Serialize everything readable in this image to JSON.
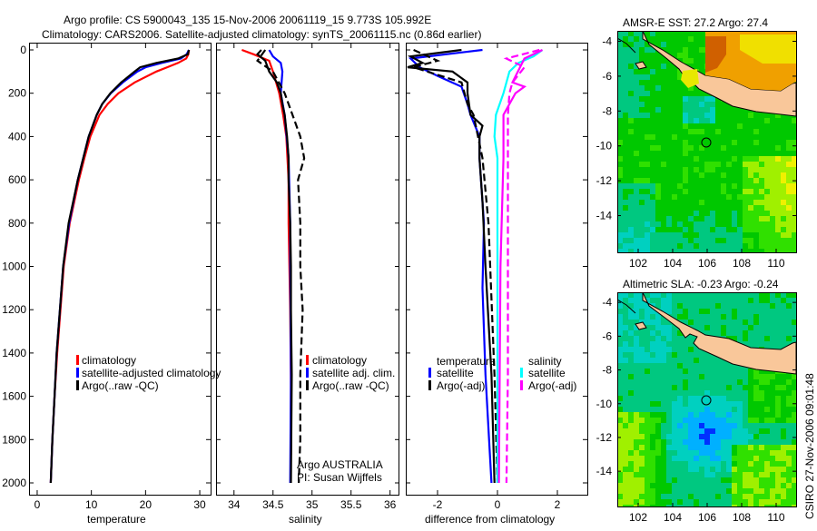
{
  "title": {
    "line1": "Argo profile: CS 5900043_135 15-Nov-2006 20061119_15 9.773S 105.992E",
    "line2": "Climatology: CARS2006. Satellite-adjusted climatology: synTS_20061115.nc (0.86d earlier)"
  },
  "side_stamp": "CSIRO 27-Nov-2006 09:01:48",
  "colors": {
    "climatology": "#ff0000",
    "satellite": "#0000ff",
    "argo": "#000000",
    "sal_satellite": "#00ffff",
    "sal_argo": "#ff00ff",
    "land": "#f9c79a"
  },
  "chart_data": [
    {
      "type": "line",
      "xlabel": "temperature",
      "ylabel": "",
      "xlim": [
        -1.5,
        32
      ],
      "ylim": [
        2000,
        0
      ],
      "xticks": [
        "0",
        "10",
        "20",
        "30"
      ],
      "xtick_values": [
        0,
        10,
        20,
        30
      ],
      "yticks": [
        "0",
        "200",
        "400",
        "600",
        "800",
        "1000",
        "1200",
        "1400",
        "1600",
        "1800",
        "2000"
      ],
      "ytick_values": [
        0,
        200,
        400,
        600,
        800,
        1000,
        1200,
        1400,
        1600,
        1800,
        2000
      ],
      "legend": [
        "climatology",
        "satellite-adjusted climatology",
        "Argo(..raw -QC)"
      ],
      "series": [
        {
          "name": "climatology",
          "color": "#ff0000",
          "dash": false,
          "depth": [
            0,
            20,
            40,
            60,
            80,
            100,
            150,
            200,
            250,
            300,
            400,
            500,
            600,
            800,
            1000,
            1200,
            1400,
            1600,
            1800,
            2000
          ],
          "values": [
            28,
            27.9,
            27.5,
            26,
            24,
            22,
            18,
            15,
            13,
            11.5,
            9.8,
            8.7,
            7.7,
            6,
            4.9,
            4.3,
            3.7,
            3.2,
            2.8,
            2.5
          ]
        },
        {
          "name": "satellite-adjusted climatology",
          "color": "#0000ff",
          "dash": false,
          "depth": [
            0,
            20,
            40,
            60,
            80,
            100,
            150,
            200,
            250,
            300,
            400,
            500,
            600,
            800,
            1000,
            1200,
            1400,
            1600,
            1800,
            2000
          ],
          "values": [
            28,
            27.6,
            26.5,
            23,
            20,
            18.5,
            15.8,
            13.6,
            12,
            11,
            9.5,
            8.5,
            7.5,
            5.9,
            4.8,
            4.2,
            3.6,
            3.2,
            2.8,
            2.5
          ]
        },
        {
          "name": "Argo(..raw -QC)",
          "color": "#000000",
          "dash": false,
          "depth": [
            0,
            20,
            40,
            60,
            80,
            100,
            150,
            200,
            250,
            300,
            400,
            500,
            600,
            800,
            1000,
            1200,
            1400,
            1600,
            1800,
            2000
          ],
          "values": [
            28,
            27.8,
            26,
            22,
            19,
            18,
            15.5,
            13.5,
            12,
            11,
            9.5,
            8.5,
            7.5,
            5.8,
            4.8,
            4.2,
            3.6,
            3.2,
            2.8,
            2.5
          ]
        }
      ]
    },
    {
      "type": "line",
      "xlabel": "salinity",
      "xlim": [
        33.77,
        36.12
      ],
      "ylim": [
        2000,
        0
      ],
      "xticks": [
        "34",
        "34.5",
        "35",
        "35.5",
        "36"
      ],
      "xtick_values": [
        34,
        34.5,
        35,
        35.5,
        36
      ],
      "legend": [
        "climatology",
        "satellite adj. clim.",
        "Argo(..raw -QC)"
      ],
      "annotation": [
        "Argo AUSTRALIA",
        "PI: Susan Wijffels"
      ],
      "series": [
        {
          "name": "climatology",
          "color": "#ff0000",
          "dash": false,
          "depth": [
            0,
            20,
            50,
            100,
            200,
            300,
            400,
            600,
            800,
            1000,
            1200,
            1550,
            1870
          ],
          "values": [
            34.1,
            34.25,
            34.45,
            34.5,
            34.58,
            34.63,
            34.67,
            34.7,
            34.7,
            34.71,
            34.72,
            34.73,
            34.73
          ]
        },
        {
          "name": "satellite adj. clim.",
          "color": "#0000ff",
          "dash": false,
          "depth": [
            0,
            30,
            60,
            100,
            200,
            300,
            500,
            800,
            1000,
            1500,
            2000
          ],
          "values": [
            34.45,
            34.5,
            34.6,
            34.62,
            34.6,
            34.65,
            34.7,
            34.72,
            34.72,
            34.73,
            34.72
          ]
        },
        {
          "name": "Argo(..raw -QC)",
          "color": "#000000",
          "dash": false,
          "depth": [
            0,
            20,
            50,
            100,
            150,
            200,
            250,
            300,
            400,
            500,
            600,
            800,
            1000,
            1200,
            1500,
            2000
          ],
          "values": [
            34.35,
            34.3,
            34.4,
            34.45,
            34.55,
            34.6,
            34.62,
            34.65,
            34.68,
            34.7,
            34.7,
            34.72,
            34.73,
            34.73,
            34.74,
            34.73
          ]
        },
        {
          "name": "Argo raw",
          "color": "#000000",
          "dash": true,
          "depth": [
            0,
            50,
            100,
            200,
            300,
            400,
            500,
            600,
            800,
            1000,
            1200,
            1500,
            1800,
            2000
          ],
          "values": [
            34.4,
            34.3,
            34.5,
            34.65,
            34.75,
            34.85,
            34.9,
            34.82,
            34.85,
            34.85,
            34.88,
            34.85,
            34.85,
            34.83
          ]
        }
      ]
    },
    {
      "type": "line",
      "xlabel": "difference from climatology",
      "xlim": [
        -3.06,
        3.0
      ],
      "ylim": [
        2000,
        0
      ],
      "xticks": [
        "-2",
        "0",
        "2"
      ],
      "xtick_values": [
        -2,
        0,
        2
      ],
      "legend_temperature": {
        "heading": "temperature",
        "items": [
          "satellite",
          "Argo(-adj)"
        ]
      },
      "legend_salinity": {
        "heading": "salinity",
        "items": [
          "satellite",
          "Argo(-adj)"
        ]
      },
      "series": [
        {
          "name": "temperature satellite",
          "color": "#0000ff",
          "dash": false,
          "depth": [
            0,
            40,
            80,
            120,
            170,
            250,
            300,
            400,
            500,
            800,
            1100,
            1500,
            2000
          ],
          "values": [
            -0.5,
            -2.9,
            -2.6,
            -2.0,
            -1.2,
            -1.0,
            -0.9,
            -0.6,
            -0.6,
            -0.45,
            -0.5,
            -0.4,
            -0.2
          ]
        },
        {
          "name": "temperature Argo(-adj)",
          "color": "#000000",
          "dash": false,
          "depth": [
            0,
            30,
            60,
            80,
            100,
            150,
            200,
            300,
            350,
            400,
            500,
            700,
            1000,
            1500,
            2000
          ],
          "values": [
            -1.2,
            -2.9,
            -2.5,
            -3,
            -1.5,
            -1.0,
            -1.0,
            -0.9,
            -0.5,
            -0.6,
            -0.6,
            -0.5,
            -0.4,
            -0.2,
            -0.1
          ]
        },
        {
          "name": "temperature Argo raw",
          "color": "#000000",
          "dash": true,
          "depth": [
            0,
            50,
            80,
            150,
            250,
            300,
            500,
            800,
            1500,
            2000
          ],
          "values": [
            -2.8,
            -2,
            -2.8,
            -1.2,
            -1,
            -0.8,
            -0.5,
            -0.3,
            -0.1,
            0
          ]
        },
        {
          "name": "salinity satellite",
          "color": "#00ffff",
          "dash": false,
          "depth": [
            0,
            30,
            60,
            100,
            200,
            300,
            400,
            500,
            800,
            1500,
            2000
          ],
          "values": [
            1.5,
            1.2,
            0.7,
            0.4,
            0.2,
            -0.05,
            -0.1,
            0,
            0,
            0,
            0
          ]
        },
        {
          "name": "salinity Argo(-adj)",
          "color": "#ff00ff",
          "dash": false,
          "depth": [
            0,
            40,
            150,
            170,
            200,
            300,
            500,
            1000,
            2000
          ],
          "values": [
            1.5,
            0.9,
            0.5,
            0.9,
            0.6,
            0.2,
            0.2,
            0.1,
            0.05
          ]
        },
        {
          "name": "salinity Argo raw",
          "color": "#ff00ff",
          "dash": true,
          "depth": [
            0,
            40,
            80,
            150,
            200,
            300,
            500,
            800,
            1200,
            1500,
            2000
          ],
          "values": [
            1.4,
            0.3,
            0.9,
            0.5,
            0.4,
            0.35,
            0.35,
            0.35,
            0.35,
            0.35,
            0.3
          ]
        }
      ]
    },
    {
      "type": "heatmap",
      "title": "AMSR-E SST: 27.2 Argo: 27.4",
      "xticks": [
        "102",
        "104",
        "106",
        "108",
        "110"
      ],
      "xtick_values": [
        102,
        104,
        106,
        108,
        110
      ],
      "yticks": [
        "-4",
        "-6",
        "-8",
        "-10",
        "-12",
        "-14"
      ],
      "ytick_values": [
        -4,
        -6,
        -8,
        -10,
        -12,
        -14
      ],
      "float_position": [
        105.992,
        -9.773
      ]
    },
    {
      "type": "heatmap",
      "title": "Altimetric SLA: -0.23 Argo: -0.24",
      "xticks": [
        "102",
        "104",
        "106",
        "108",
        "110"
      ],
      "xtick_values": [
        102,
        104,
        106,
        108,
        110
      ],
      "yticks": [
        "-4",
        "-6",
        "-8",
        "-10",
        "-12",
        "-14"
      ],
      "ytick_values": [
        -4,
        -6,
        -8,
        -10,
        -12,
        -14
      ],
      "float_position": [
        105.992,
        -9.773
      ]
    }
  ]
}
